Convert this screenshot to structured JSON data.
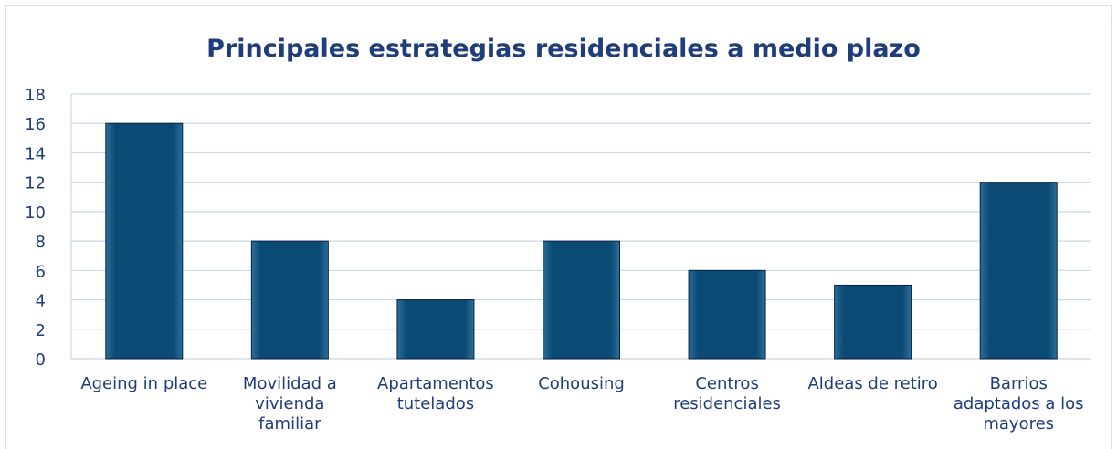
{
  "chart_data": {
    "type": "bar",
    "title": "Principales estrategias residenciales a medio plazo",
    "categories": [
      "Ageing in place",
      "Movilidad a vivienda familiar",
      "Apartamentos tutelados",
      "Cohousing",
      "Centros residenciales",
      "Aldeas de retiro",
      "Barrios adaptados a los mayores"
    ],
    "values": [
      16,
      8,
      4,
      8,
      6,
      5,
      12
    ],
    "color": "#0b4a74",
    "ylim": [
      0,
      18
    ],
    "yticks": [
      0,
      2,
      4,
      6,
      8,
      10,
      12,
      14,
      16,
      18
    ],
    "grid": true
  }
}
